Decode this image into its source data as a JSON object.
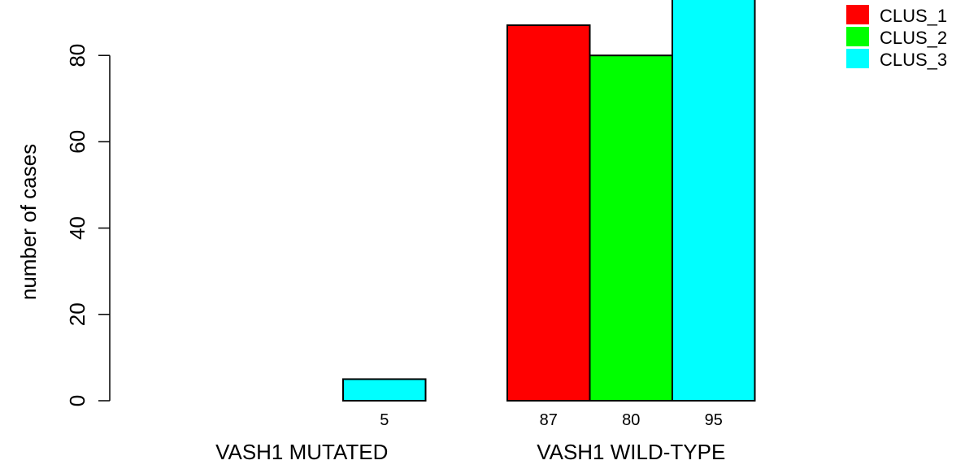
{
  "chart_data": {
    "type": "bar",
    "categories": [
      "VASH1 MUTATED",
      "VASH1 WILD-TYPE"
    ],
    "series": [
      {
        "name": "CLUS_1",
        "values": [
          0,
          87
        ]
      },
      {
        "name": "CLUS_2",
        "values": [
          0,
          80
        ]
      },
      {
        "name": "CLUS_3",
        "values": [
          5,
          95
        ]
      }
    ],
    "bar_labels": [
      [
        "",
        "",
        "5"
      ],
      [
        "87",
        "80",
        "95"
      ]
    ],
    "ylabel": "number of cases",
    "xlabel": "",
    "title": "",
    "ylim": [
      0,
      95
    ],
    "yticks": [
      "0",
      "20",
      "40",
      "60",
      "80"
    ],
    "grid": false,
    "legend_position": "top-right",
    "colors": {
      "CLUS_1": "#ff0000",
      "CLUS_2": "#00ff00",
      "CLUS_3": "#00ffff"
    }
  }
}
